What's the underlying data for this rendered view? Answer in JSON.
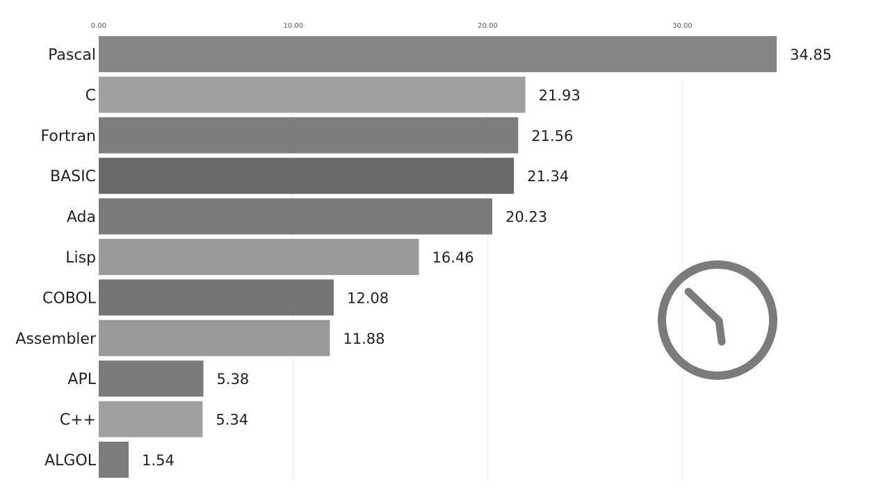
{
  "chart_data": {
    "type": "bar",
    "orientation": "horizontal",
    "title": "",
    "xlabel": "",
    "ylabel": "",
    "categories": [
      "Pascal",
      "C",
      "Fortran",
      "BASIC",
      "Ada",
      "Lisp",
      "COBOL",
      "Assembler",
      "APL",
      "C++",
      "ALGOL"
    ],
    "values": [
      34.85,
      21.93,
      21.56,
      21.34,
      20.23,
      16.46,
      12.08,
      11.88,
      5.38,
      5.34,
      1.54
    ],
    "value_labels": [
      "34.85",
      "21.93",
      "21.56",
      "21.34",
      "20.23",
      "16.46",
      "12.08",
      "11.88",
      "5.38",
      "5.34",
      "1.54"
    ],
    "bar_colors": [
      "#858585",
      "#a0a0a0",
      "#7d7d7d",
      "#6a6a6a",
      "#7b7b7b",
      "#9a9a9a",
      "#757575",
      "#9a9a9a",
      "#7b7b7b",
      "#a0a0a0",
      "#7d7d7d"
    ],
    "x_ticks": [
      0,
      10,
      20,
      30
    ],
    "x_tick_labels": [
      "0.00",
      "10.00",
      "20.00",
      "30.00"
    ],
    "xlim": [
      0,
      45.7
    ],
    "x_axis_position": "top",
    "grid": true
  },
  "clock_icon": {
    "icon": "clock-icon",
    "color": "#7b7b7b"
  }
}
